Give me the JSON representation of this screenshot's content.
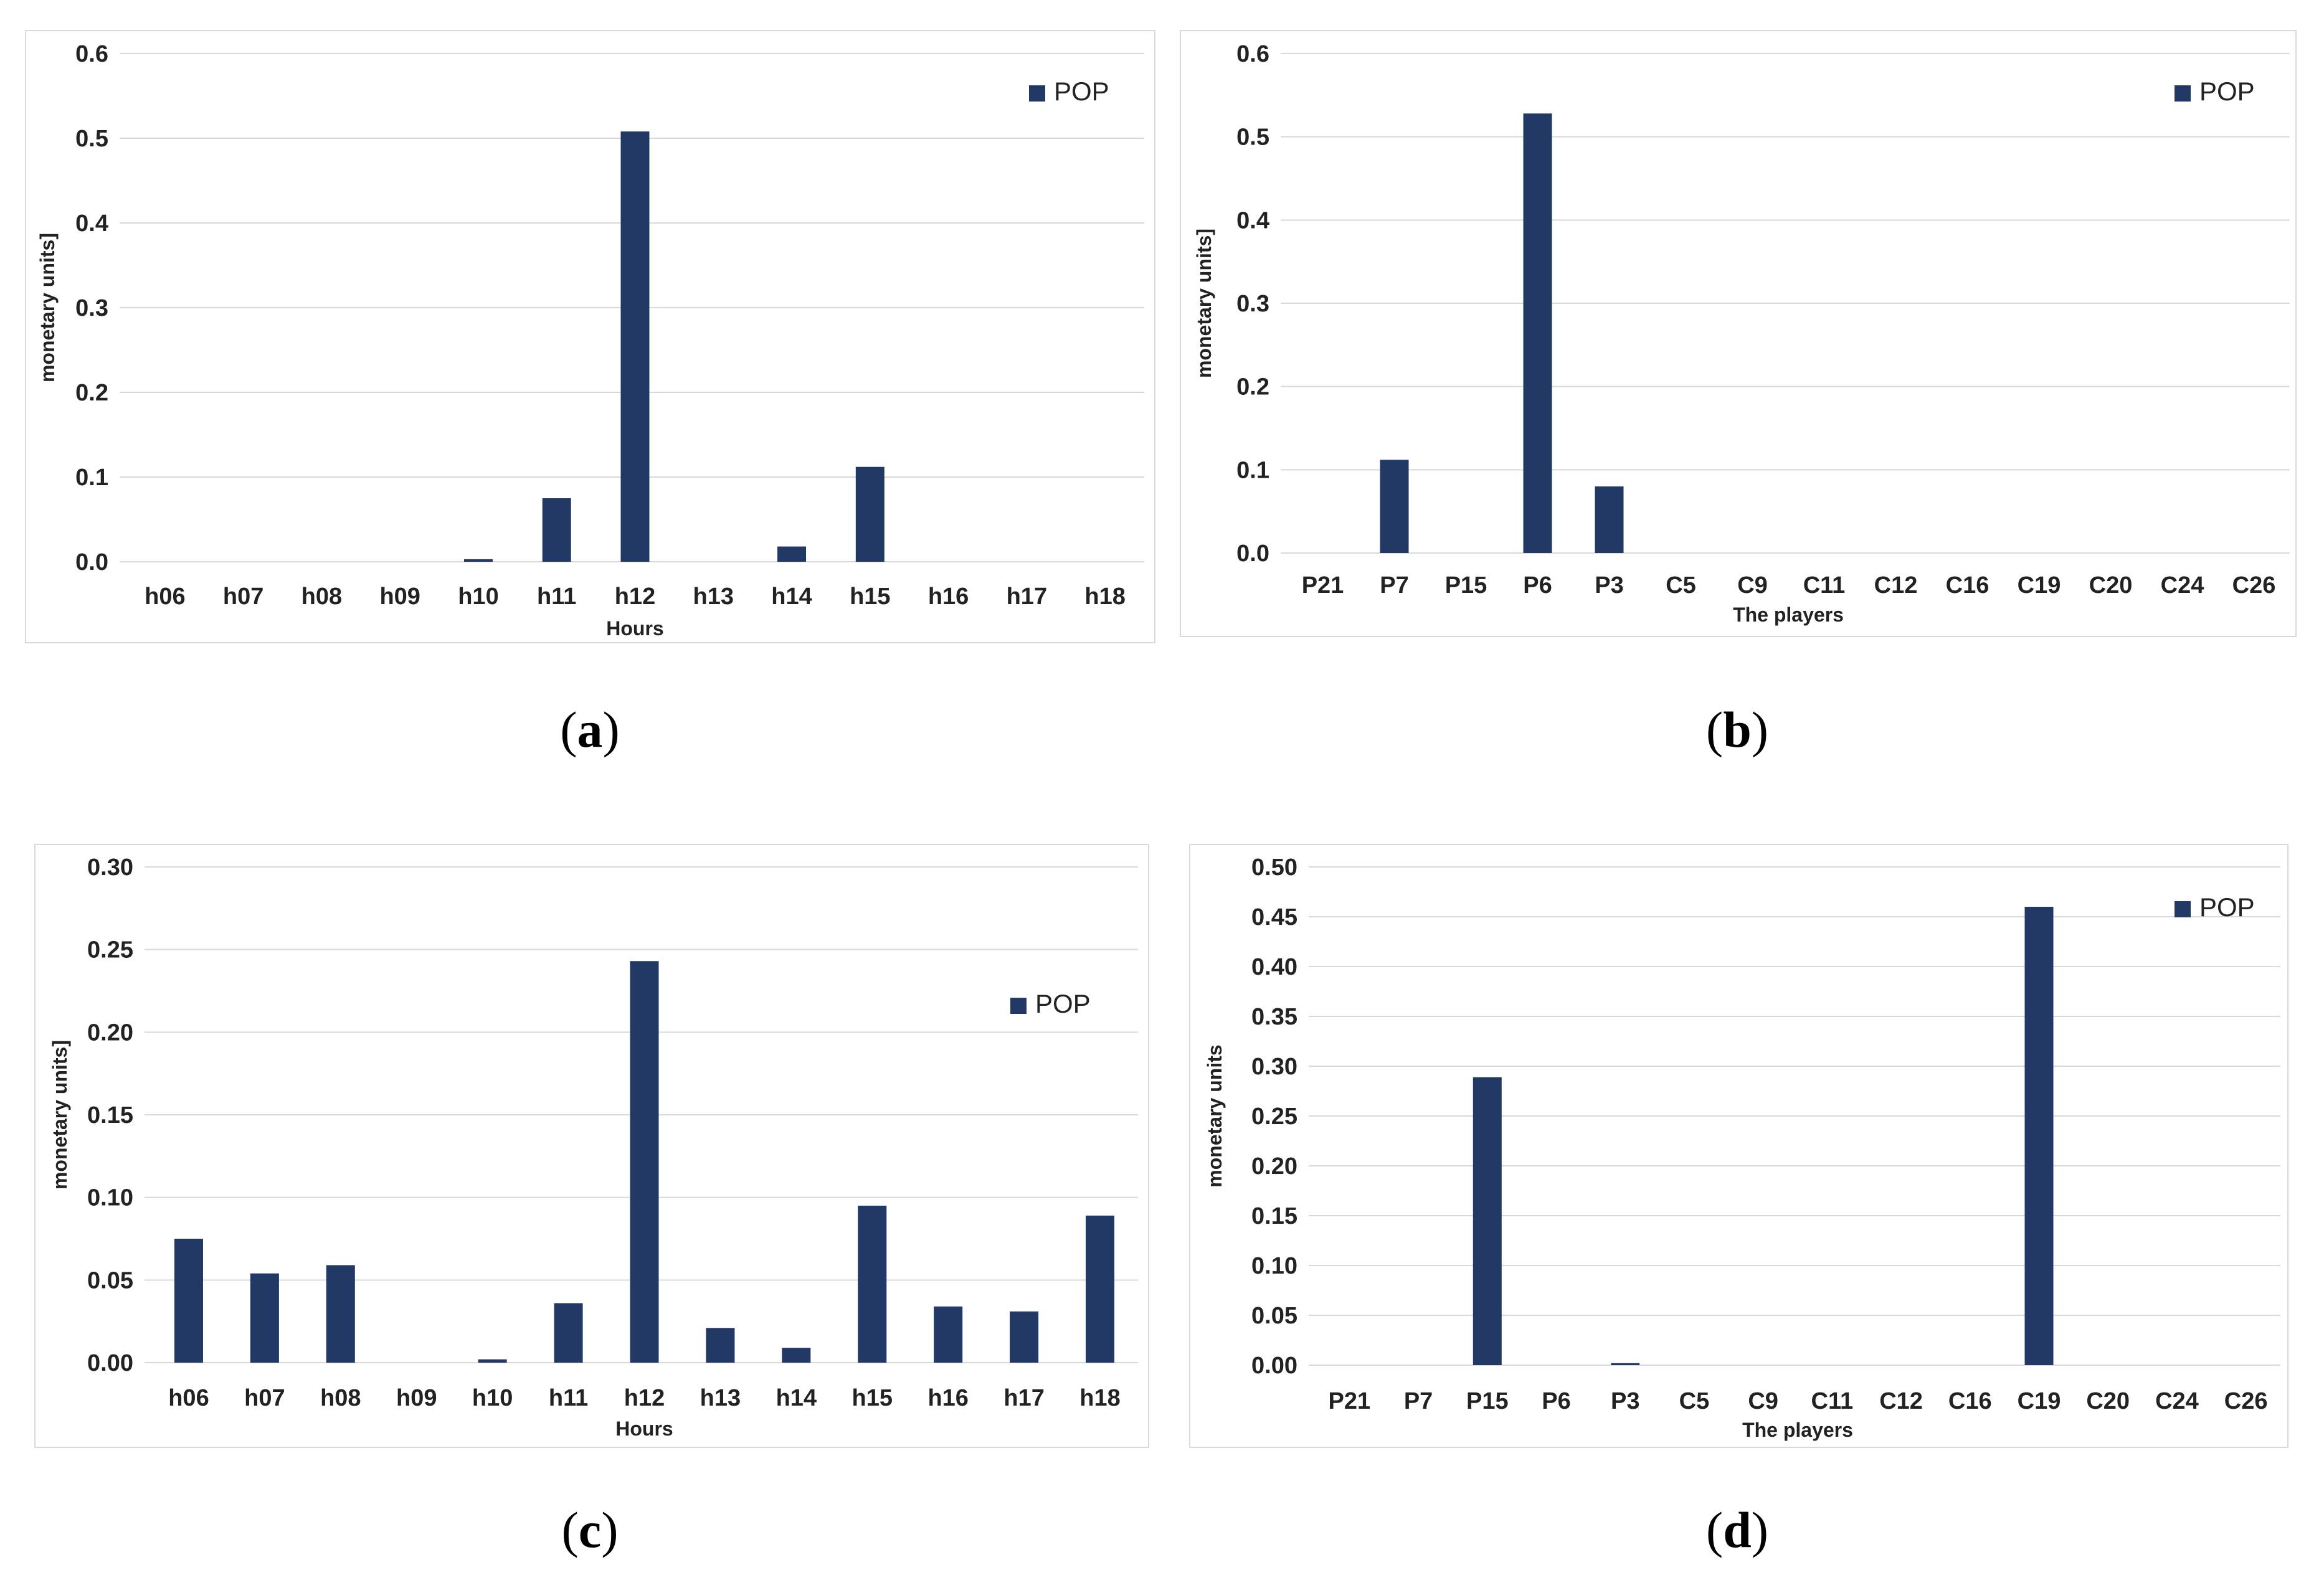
{
  "colors": {
    "bar": "#213964",
    "grid": "#d9d9d9"
  },
  "chart_data": [
    {
      "id": "a",
      "panel_label": "a",
      "type": "bar",
      "categories": [
        "h06",
        "h07",
        "h08",
        "h09",
        "h10",
        "h11",
        "h12",
        "h13",
        "h14",
        "h15",
        "h16",
        "h17",
        "h18"
      ],
      "series": [
        {
          "name": "POP",
          "values": [
            0,
            0,
            0,
            0,
            0.003,
            0.075,
            0.508,
            0,
            0.018,
            0.112,
            0,
            0,
            0
          ]
        }
      ],
      "xlabel": "Hours",
      "ylabel": "monetary units]",
      "ylim": [
        0,
        0.6
      ],
      "yticks": [
        "0.0",
        "0.1",
        "0.2",
        "0.3",
        "0.4",
        "0.5",
        "0.6"
      ],
      "legend": "top-right",
      "grid": true
    },
    {
      "id": "b",
      "panel_label": "b",
      "type": "bar",
      "categories": [
        "P21",
        "P7",
        "P15",
        "P6",
        "P3",
        "C5",
        "C9",
        "C11",
        "C12",
        "C16",
        "C19",
        "C20",
        "C24",
        "C26"
      ],
      "series": [
        {
          "name": "POP",
          "values": [
            0,
            0.112,
            0,
            0.528,
            0.08,
            0,
            0,
            0,
            0,
            0,
            0,
            0,
            0,
            0
          ]
        }
      ],
      "xlabel": "The players",
      "ylabel": "monetary units]",
      "ylim": [
        0,
        0.6
      ],
      "yticks": [
        "0.0",
        "0.1",
        "0.2",
        "0.3",
        "0.4",
        "0.5",
        "0.6"
      ],
      "legend": "top-right",
      "grid": true
    },
    {
      "id": "c",
      "panel_label": "c",
      "type": "bar",
      "categories": [
        "h06",
        "h07",
        "h08",
        "h09",
        "h10",
        "h11",
        "h12",
        "h13",
        "h14",
        "h15",
        "h16",
        "h17",
        "h18"
      ],
      "series": [
        {
          "name": "POP",
          "values": [
            0.075,
            0.054,
            0.059,
            0,
            0.002,
            0.036,
            0.243,
            0.021,
            0.009,
            0.095,
            0.034,
            0.031,
            0.089
          ]
        }
      ],
      "xlabel": "Hours",
      "ylabel": "monetary units]",
      "ylim": [
        0,
        0.3
      ],
      "yticks": [
        "0.00",
        "0.05",
        "0.10",
        "0.15",
        "0.20",
        "0.25",
        "0.30"
      ],
      "legend": "top-right",
      "grid": true
    },
    {
      "id": "d",
      "panel_label": "d",
      "type": "bar",
      "categories": [
        "P21",
        "P7",
        "P15",
        "P6",
        "P3",
        "C5",
        "C9",
        "C11",
        "C12",
        "C16",
        "C19",
        "C20",
        "C24",
        "C26"
      ],
      "series": [
        {
          "name": "POP",
          "values": [
            0,
            0,
            0.289,
            0,
            0.002,
            0,
            0,
            0,
            0,
            0,
            0.46,
            0,
            0,
            0
          ]
        }
      ],
      "xlabel": "The players",
      "ylabel": "monetary units",
      "ylim": [
        0,
        0.5
      ],
      "yticks": [
        "0.00",
        "0.05",
        "0.10",
        "0.15",
        "0.20",
        "0.25",
        "0.30",
        "0.35",
        "0.40",
        "0.45",
        "0.50"
      ],
      "legend": "top-right",
      "grid": true
    }
  ]
}
